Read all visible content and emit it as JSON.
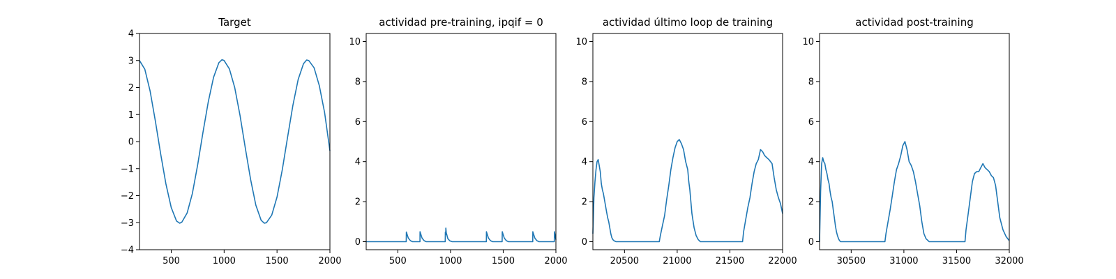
{
  "chart_data": [
    {
      "type": "line",
      "title": "Target",
      "xlabel": "",
      "ylabel": "",
      "xlim": [
        200,
        2000
      ],
      "ylim": [
        -4,
        4
      ],
      "xticks": [
        500,
        1000,
        1500,
        2000
      ],
      "yticks": [
        -4,
        -3,
        -2,
        -1,
        0,
        1,
        2,
        3,
        4
      ],
      "grid": false,
      "color": "#1f77b4",
      "x": [
        200,
        250,
        300,
        350,
        400,
        450,
        500,
        550,
        580,
        600,
        650,
        700,
        750,
        800,
        850,
        900,
        950,
        980,
        1000,
        1050,
        1100,
        1150,
        1200,
        1250,
        1300,
        1350,
        1380,
        1400,
        1450,
        1500,
        1550,
        1600,
        1650,
        1700,
        1750,
        1780,
        1800,
        1850,
        1900,
        1950,
        2000
      ],
      "values": [
        3.0,
        2.68,
        1.87,
        0.75,
        -0.45,
        -1.57,
        -2.44,
        -2.94,
        -3.02,
        -2.98,
        -2.64,
        -1.92,
        -0.86,
        0.34,
        1.47,
        2.38,
        2.92,
        3.03,
        3.0,
        2.69,
        2.0,
        0.97,
        -0.24,
        -1.4,
        -2.35,
        -2.91,
        -3.02,
        -3.0,
        -2.72,
        -2.05,
        -1.03,
        0.16,
        1.34,
        2.3,
        2.88,
        3.02,
        3.0,
        2.73,
        2.07,
        1.07,
        -0.34
      ]
    },
    {
      "type": "line",
      "title": "actividad pre-training, ipqif = 0",
      "xlabel": "",
      "ylabel": "",
      "xlim": [
        200,
        2000
      ],
      "ylim": [
        -0.4,
        10.4
      ],
      "xticks": [
        500,
        1000,
        1500,
        2000
      ],
      "yticks": [
        0,
        2,
        4,
        6,
        8,
        10
      ],
      "grid": false,
      "color": "#1f77b4",
      "x": [
        200,
        580,
        581,
        600,
        620,
        640,
        700,
        710,
        711,
        730,
        750,
        770,
        940,
        950,
        951,
        955,
        956,
        960,
        975,
        995,
        1015,
        1330,
        1340,
        1341,
        1360,
        1380,
        1400,
        1480,
        1490,
        1491,
        1510,
        1530,
        1550,
        1770,
        1780,
        1781,
        1800,
        1820,
        1840,
        1975,
        1985,
        1986,
        2000
      ],
      "values": [
        0,
        0,
        0.48,
        0.18,
        0.05,
        0,
        0,
        0,
        0.5,
        0.18,
        0.05,
        0,
        0,
        0,
        0.48,
        0.35,
        0.68,
        0.45,
        0.15,
        0.04,
        0,
        0,
        0,
        0.5,
        0.18,
        0.05,
        0,
        0,
        0,
        0.5,
        0.18,
        0.05,
        0,
        0,
        0,
        0.5,
        0.18,
        0.05,
        0,
        0,
        0,
        0.5,
        0.1
      ]
    },
    {
      "type": "line",
      "title": "actividad último loop de training",
      "xlabel": "",
      "ylabel": "",
      "xlim": [
        20200,
        22000
      ],
      "ylim": [
        -0.4,
        10.4
      ],
      "xticks": [
        20500,
        21000,
        21500,
        22000
      ],
      "yticks": [
        0,
        2,
        4,
        6,
        8,
        10
      ],
      "grid": false,
      "color": "#1f77b4",
      "x": [
        20200,
        20210,
        20220,
        20230,
        20240,
        20250,
        20260,
        20270,
        20280,
        20290,
        20300,
        20310,
        20320,
        20330,
        20340,
        20350,
        20360,
        20370,
        20380,
        20390,
        20400,
        20420,
        20440,
        20460,
        20500,
        20600,
        20700,
        20800,
        20830,
        20840,
        20860,
        20880,
        20900,
        20920,
        20940,
        20960,
        20980,
        21000,
        21020,
        21040,
        21060,
        21080,
        21100,
        21110,
        21120,
        21130,
        21140,
        21160,
        21180,
        21200,
        21220,
        21250,
        21300,
        21400,
        21500,
        21620,
        21630,
        21650,
        21670,
        21690,
        21710,
        21730,
        21750,
        21770,
        21790,
        21810,
        21830,
        21850,
        21870,
        21900,
        21920,
        21940,
        21960,
        21980,
        22000
      ],
      "values": [
        0.4,
        2.2,
        3.0,
        3.6,
        4.0,
        4.1,
        3.8,
        3.5,
        2.9,
        2.6,
        2.4,
        2.1,
        1.8,
        1.5,
        1.2,
        1.0,
        0.7,
        0.4,
        0.2,
        0.1,
        0.05,
        0,
        0,
        0,
        0,
        0,
        0,
        0,
        0,
        0.3,
        0.8,
        1.3,
        2.1,
        2.8,
        3.6,
        4.2,
        4.7,
        5.0,
        5.1,
        4.9,
        4.6,
        4.0,
        3.6,
        3.0,
        2.6,
        2.0,
        1.4,
        0.7,
        0.3,
        0.1,
        0,
        0,
        0,
        0,
        0,
        0,
        0.5,
        1.1,
        1.7,
        2.2,
        2.9,
        3.5,
        3.9,
        4.1,
        4.6,
        4.5,
        4.3,
        4.2,
        4.1,
        3.9,
        3.2,
        2.6,
        2.2,
        1.9,
        1.4
      ]
    },
    {
      "type": "line",
      "title": "actividad post-training",
      "xlabel": "",
      "ylabel": "",
      "xlim": [
        30200,
        32000
      ],
      "ylim": [
        -0.4,
        10.4
      ],
      "xticks": [
        30500,
        31000,
        31500,
        32000
      ],
      "yticks": [
        0,
        2,
        4,
        6,
        8,
        10
      ],
      "grid": false,
      "color": "#1f77b4",
      "x": [
        30200,
        30210,
        30220,
        30230,
        30240,
        30250,
        30260,
        30270,
        30280,
        30290,
        30300,
        30310,
        30320,
        30330,
        30340,
        30350,
        30360,
        30370,
        30380,
        30390,
        30400,
        30420,
        30440,
        30500,
        30600,
        30700,
        30820,
        30830,
        30850,
        30870,
        30890,
        30910,
        30930,
        30950,
        30970,
        30990,
        31010,
        31030,
        31050,
        31070,
        31090,
        31110,
        31130,
        31150,
        31170,
        31190,
        31210,
        31240,
        31300,
        31400,
        31500,
        31580,
        31590,
        31610,
        31630,
        31650,
        31670,
        31690,
        31710,
        31730,
        31750,
        31770,
        31790,
        31810,
        31830,
        31850,
        31870,
        31890,
        31910,
        31940,
        31970,
        32000
      ],
      "values": [
        0,
        2.5,
        3.9,
        4.2,
        4.0,
        3.9,
        3.6,
        3.4,
        3.1,
        2.9,
        2.5,
        2.2,
        2.0,
        1.6,
        1.2,
        0.8,
        0.5,
        0.3,
        0.15,
        0.05,
        0,
        0,
        0,
        0,
        0,
        0,
        0,
        0.4,
        1.0,
        1.6,
        2.3,
        3.0,
        3.6,
        3.9,
        4.3,
        4.8,
        5.0,
        4.6,
        4.0,
        3.8,
        3.5,
        3.0,
        2.4,
        1.8,
        1.0,
        0.4,
        0.15,
        0,
        0,
        0,
        0,
        0,
        0.6,
        1.4,
        2.2,
        3.0,
        3.4,
        3.5,
        3.5,
        3.7,
        3.9,
        3.7,
        3.6,
        3.5,
        3.3,
        3.2,
        2.8,
        2.0,
        1.2,
        0.6,
        0.25,
        0.05
      ]
    }
  ]
}
